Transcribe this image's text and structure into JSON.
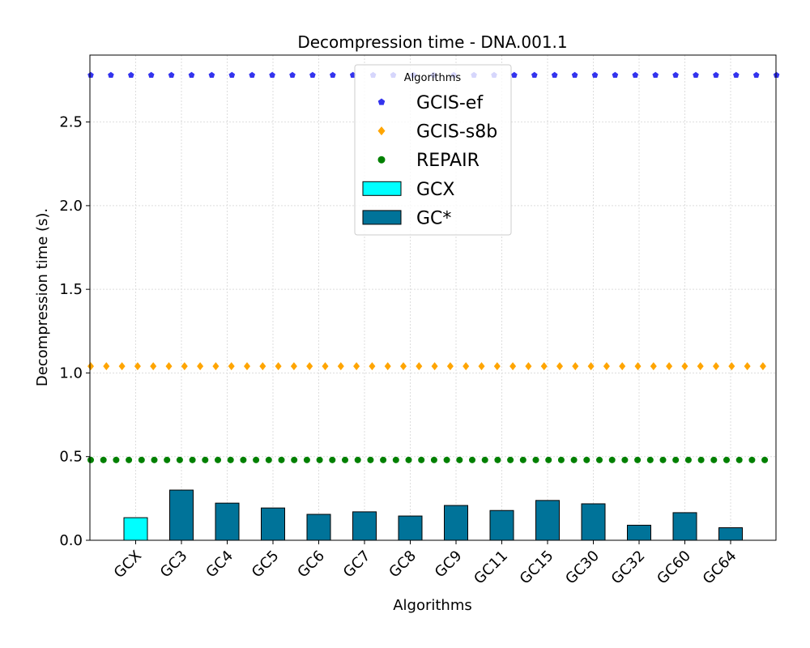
{
  "chart_data": {
    "type": "bar",
    "title": "Decompression time -  DNA.001.1",
    "xlabel": "Algorithms",
    "ylabel": "Decompression time (s).",
    "categories": [
      "GCX",
      "GC3",
      "GC4",
      "GC5",
      "GC6",
      "GC7",
      "GC8",
      "GC9",
      "GC11",
      "GC15",
      "GC30",
      "GC32",
      "GC60",
      "GC64"
    ],
    "series": [
      {
        "name": "GCX",
        "kind": "bar",
        "color": "#00ffff",
        "values": [
          0.135,
          null,
          null,
          null,
          null,
          null,
          null,
          null,
          null,
          null,
          null,
          null,
          null,
          null
        ]
      },
      {
        "name": "GC*",
        "kind": "bar",
        "color": "#007399",
        "values": [
          null,
          0.3,
          0.222,
          0.193,
          0.155,
          0.17,
          0.145,
          0.208,
          0.178,
          0.238,
          0.218,
          0.09,
          0.165,
          0.075
        ]
      },
      {
        "name": "GCIS-ef",
        "kind": "hline",
        "marker": "pentagon",
        "color": "#3333ee",
        "value": 2.78
      },
      {
        "name": "GCIS-s8b",
        "kind": "hline",
        "marker": "diamond",
        "color": "#ffa500",
        "value": 1.04
      },
      {
        "name": "REPAIR",
        "kind": "hline",
        "marker": "circle",
        "color": "#008000",
        "value": 0.48
      }
    ],
    "ylim": [
      0,
      2.9
    ],
    "yticks": [
      "0.0",
      "0.5",
      "1.0",
      "1.5",
      "2.0",
      "2.5"
    ],
    "grid": true,
    "legend": {
      "title": "Algorithms",
      "placement": "top-center",
      "entries": [
        "GCIS-ef",
        "GCIS-s8b",
        "REPAIR",
        "GCX",
        "GC*"
      ]
    }
  }
}
